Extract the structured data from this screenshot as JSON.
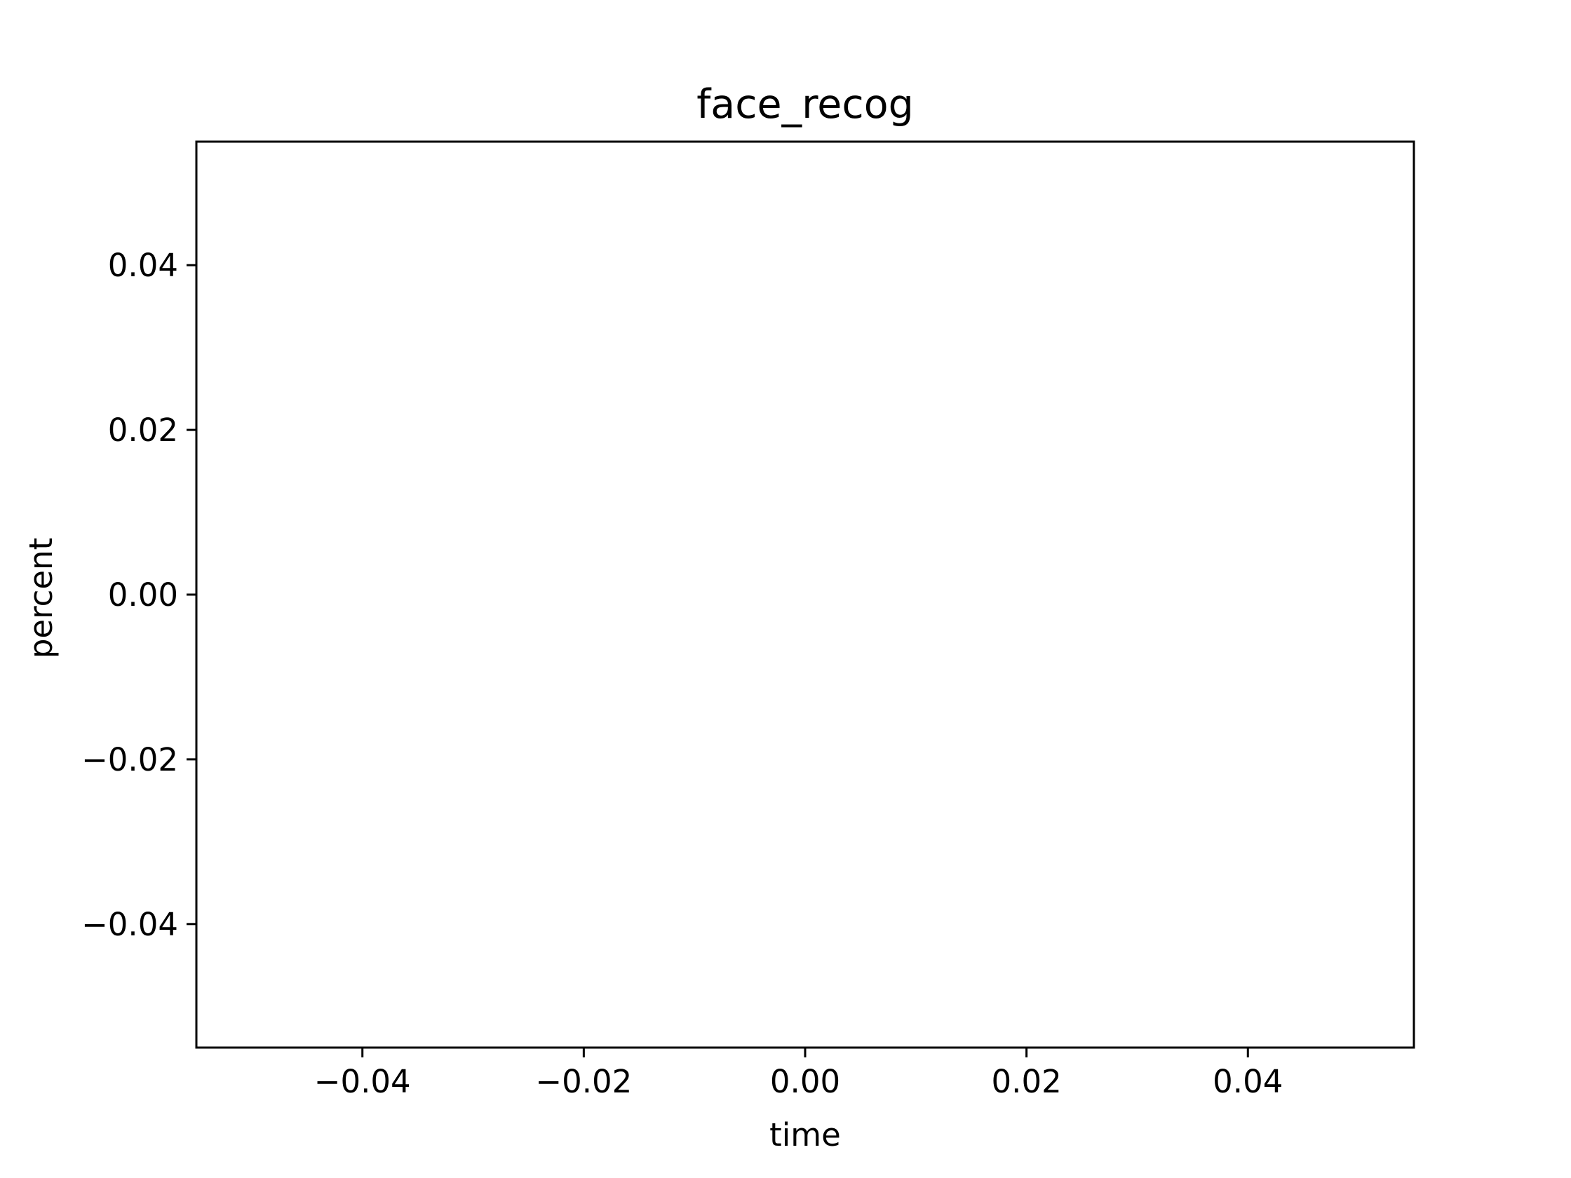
{
  "chart_data": {
    "type": "line",
    "title": "face_recog",
    "xlabel": "time",
    "ylabel": "percent",
    "xlim": [
      -0.055,
      0.055
    ],
    "ylim": [
      -0.055,
      0.055
    ],
    "x_ticks": [
      {
        "value": -0.04,
        "label": "−0.04"
      },
      {
        "value": -0.02,
        "label": "−0.02"
      },
      {
        "value": 0.0,
        "label": "0.00"
      },
      {
        "value": 0.02,
        "label": "0.02"
      },
      {
        "value": 0.04,
        "label": "0.04"
      }
    ],
    "y_ticks": [
      {
        "value": -0.04,
        "label": "−0.04"
      },
      {
        "value": -0.02,
        "label": "−0.02"
      },
      {
        "value": 0.0,
        "label": "0.00"
      },
      {
        "value": 0.02,
        "label": "0.02"
      },
      {
        "value": 0.04,
        "label": "0.04"
      }
    ],
    "series": [],
    "grid": false,
    "legend": "none"
  },
  "style": {
    "axis_color": "#000000",
    "background": "#ffffff"
  }
}
